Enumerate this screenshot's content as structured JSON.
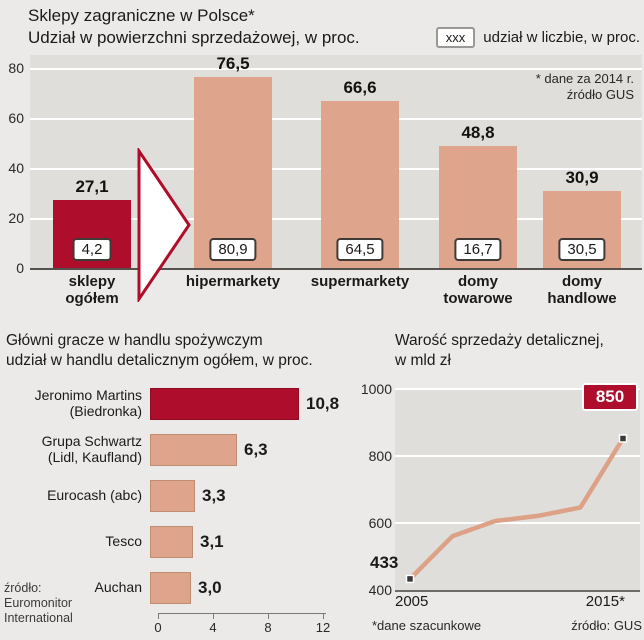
{
  "chart_data": [
    {
      "type": "bar",
      "title": "Sklepy zagraniczne w Polsce*",
      "subtitle": "Udział w powierzchni sprzedażowej, w proc.",
      "legend": {
        "swatch": "xxx",
        "label": "udział w liczbie, w proc."
      },
      "note_line1": "* dane za 2014 r.",
      "note_line2": "źródło GUS",
      "ylim": [
        0,
        80
      ],
      "y_ticks": [
        "80",
        "60",
        "40",
        "20",
        "0"
      ],
      "categories": [
        "sklepy ogółem",
        "hipermarkety",
        "supermarkety",
        "domy towarowe",
        "domy handlowe"
      ],
      "series": [
        {
          "name": "udział w powierzchni sprzedażowej, w proc.",
          "values": [
            27.1,
            76.5,
            66.6,
            48.8,
            30.9
          ]
        },
        {
          "name": "udział w liczbie, w proc.",
          "values": [
            4.2,
            80.9,
            64.5,
            16.7,
            30.5
          ]
        }
      ],
      "bars": [
        {
          "label": "sklepy\nogółem",
          "value": "27,1",
          "count": "4,2"
        },
        {
          "label": "hipermarkety",
          "value": "76,5",
          "count": "80,9"
        },
        {
          "label": "supermarkety",
          "value": "66,6",
          "count": "64,5"
        },
        {
          "label": "domy\ntowarowe",
          "value": "48,8",
          "count": "16,7"
        },
        {
          "label": "domy\nhandlowe",
          "value": "30,9",
          "count": "30,5"
        }
      ],
      "colors": {
        "highlight": "#ae0e2c",
        "bar": "#dfa58c"
      }
    },
    {
      "type": "bar",
      "orientation": "horizontal",
      "title_line1": "Główni gracze w handlu spożywczym",
      "title_line2": "udział w handlu detalicznym ogółem, w proc.",
      "xlim": [
        0,
        12
      ],
      "x_ticks": [
        "0",
        "4",
        "8",
        "12"
      ],
      "categories": [
        "Jeronimo Martins (Biedronka)",
        "Grupa Schwartz (Lidl, Kaufland)",
        "Eurocash (abc)",
        "Tesco",
        "Auchan"
      ],
      "values": [
        10.8,
        6.3,
        3.3,
        3.1,
        3.0
      ],
      "rows": [
        {
          "label": "Jeronimo  Martins\n(Biedronka)",
          "value": "10,8"
        },
        {
          "label": "Grupa Schwartz\n(Lidl, Kaufland)",
          "value": "6,3"
        },
        {
          "label": "Eurocash (abc)",
          "value": "3,3"
        },
        {
          "label": "Tesco",
          "value": "3,1"
        },
        {
          "label": "Auchan",
          "value": "3,0"
        }
      ],
      "source_line1": "źródło:",
      "source_line2": "Euromonitor",
      "source_line3": "International",
      "colors": {
        "highlight": "#ae0e2c",
        "bar": "#dfa58c"
      }
    },
    {
      "type": "line",
      "title_line1": "Warość sprzedaży detalicznej,",
      "title_line2": "w mld zł",
      "ylim": [
        400,
        1000
      ],
      "y_ticks": [
        "1000",
        "800",
        "600",
        "400"
      ],
      "x": [
        2005,
        2007,
        2009,
        2011,
        2013,
        2015
      ],
      "values": [
        433,
        560,
        605,
        620,
        645,
        850
      ],
      "start_label": "433",
      "end_label": "850",
      "x_label_left": "2005",
      "x_label_right": "2015*",
      "note_left": "*dane szacunkowe",
      "note_right": "źródło: GUS",
      "line_color": "#dfa58c"
    }
  ]
}
